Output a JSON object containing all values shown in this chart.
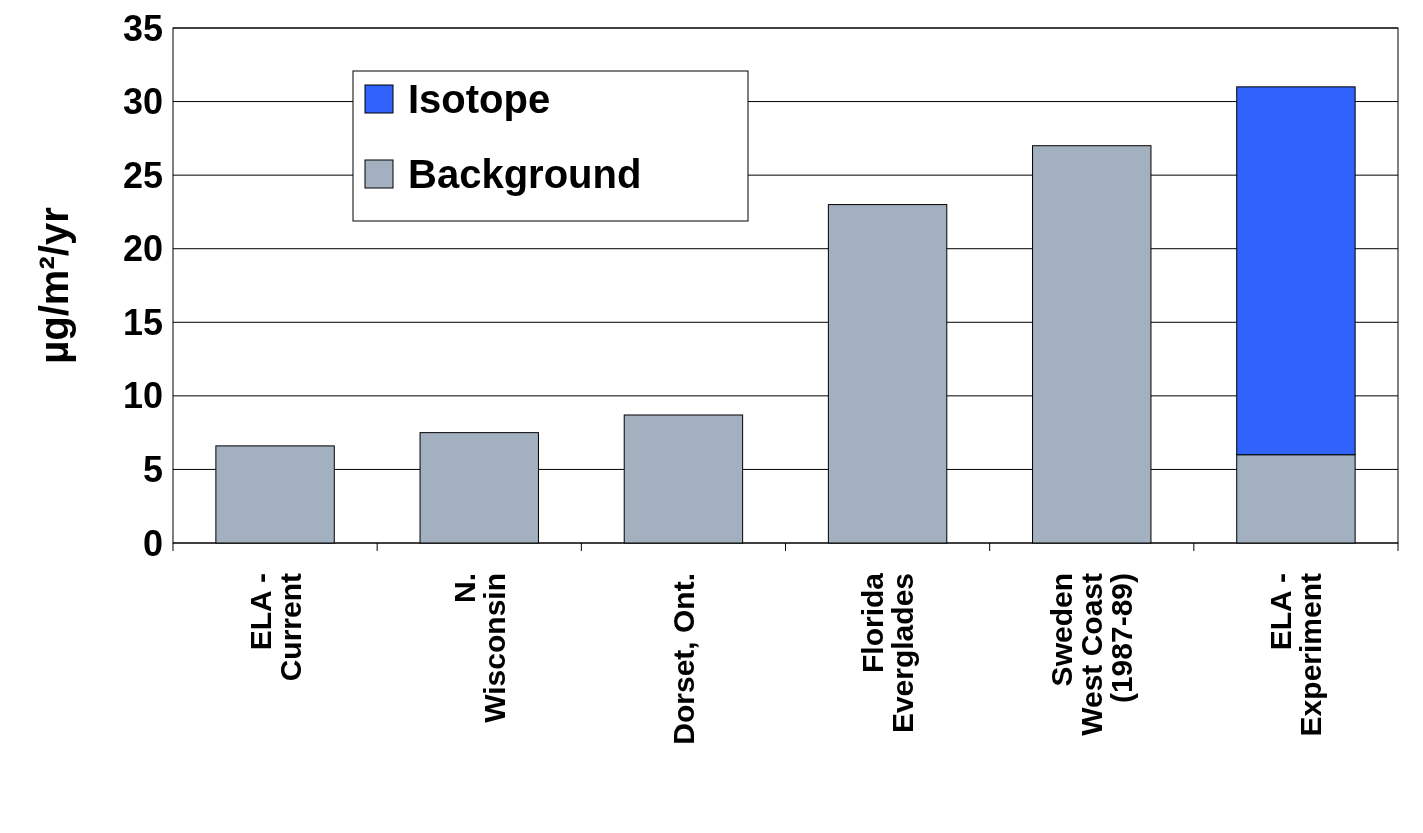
{
  "chart_data": {
    "type": "bar",
    "stacked": true,
    "ylabel": "µg/m²/yr",
    "categories": [
      "ELA -\nCurrent",
      "N.\nWisconsin",
      "Dorset, Ont.",
      "Florida\nEverglades",
      "Sweden\nWest Coast\n(1987-89)",
      "ELA -\nExperiment"
    ],
    "series": [
      {
        "name": "Background",
        "color": "#a2b0bf",
        "values": [
          6.6,
          7.5,
          8.7,
          23,
          27,
          6
        ]
      },
      {
        "name": "Isotope",
        "color": "#2f63fb",
        "values": [
          null,
          null,
          null,
          null,
          null,
          25
        ]
      }
    ],
    "ylim": [
      0,
      35
    ],
    "yticks": [
      0,
      5,
      10,
      15,
      20,
      25,
      30,
      35
    ],
    "grid": "y",
    "legend": "top left"
  }
}
